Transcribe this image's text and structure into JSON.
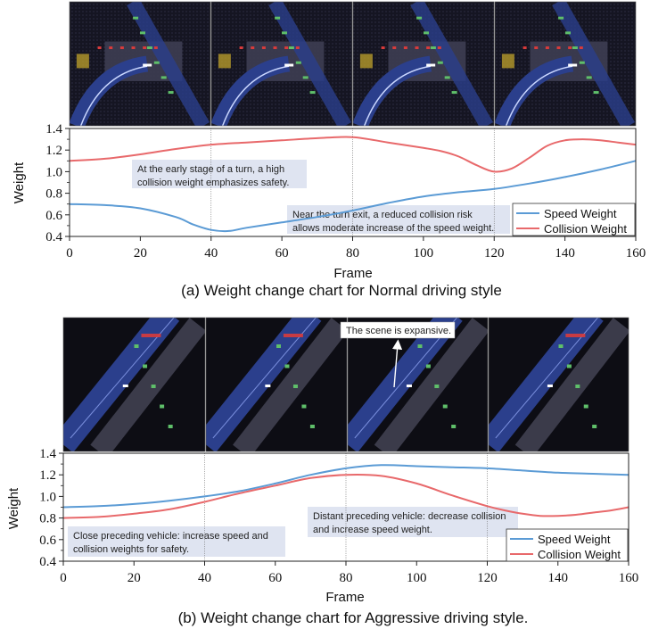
{
  "colors": {
    "speed": "#5b9bd5",
    "collision": "#e8696b",
    "annotation_bg": "#dde3f0",
    "scene_bg": "#0d0d14",
    "road": "#2b3f8c",
    "vehicle": "#5fbf6a",
    "highlight": "#d93b3b"
  },
  "chart_data": [
    {
      "type": "line",
      "title": "(a) Weight change chart for Normal driving style",
      "xlabel": "Frame",
      "ylabel": "Weight",
      "xlim": [
        0,
        160
      ],
      "ylim": [
        0.4,
        1.4
      ],
      "xticks": [
        "0",
        "20",
        "40",
        "60",
        "80",
        "100",
        "120",
        "140",
        "160"
      ],
      "yticks": [
        "0.4",
        "0.6",
        "0.8",
        "1.0",
        "1.2",
        "1.4"
      ],
      "frame_markers": [
        40,
        80,
        120
      ],
      "legend": [
        "Speed Weight",
        "Collision Weight"
      ],
      "legend_position": "bottom-right",
      "series": [
        {
          "name": "Speed Weight",
          "x": [
            0,
            10,
            20,
            30,
            35,
            40,
            45,
            50,
            60,
            70,
            80,
            90,
            100,
            110,
            120,
            130,
            140,
            150,
            160
          ],
          "y": [
            0.7,
            0.69,
            0.66,
            0.58,
            0.51,
            0.46,
            0.45,
            0.48,
            0.53,
            0.58,
            0.64,
            0.71,
            0.77,
            0.81,
            0.84,
            0.89,
            0.95,
            1.02,
            1.1
          ]
        },
        {
          "name": "Collision Weight",
          "x": [
            0,
            10,
            20,
            30,
            40,
            50,
            60,
            70,
            80,
            90,
            100,
            105,
            110,
            115,
            120,
            125,
            130,
            135,
            140,
            145,
            150,
            155,
            160
          ],
          "y": [
            1.1,
            1.12,
            1.16,
            1.21,
            1.25,
            1.27,
            1.29,
            1.31,
            1.32,
            1.27,
            1.22,
            1.19,
            1.14,
            1.06,
            1.0,
            1.03,
            1.13,
            1.24,
            1.29,
            1.3,
            1.29,
            1.27,
            1.25
          ]
        }
      ],
      "annotations": [
        {
          "lines": [
            "At the early stage of a turn, a high",
            "collision weight emphasizes safety."
          ]
        },
        {
          "lines": [
            "Near the turn exit, a reduced collision risk",
            "allows moderate increase of the speed weight."
          ]
        }
      ]
    },
    {
      "type": "line",
      "title": "(b) Weight change chart for Aggressive driving style.",
      "xlabel": "Frame",
      "ylabel": "Weight",
      "xlim": [
        0,
        160
      ],
      "ylim": [
        0.4,
        1.4
      ],
      "xticks": [
        "0",
        "20",
        "40",
        "60",
        "80",
        "100",
        "120",
        "140",
        "160"
      ],
      "yticks": [
        "0.4",
        "0.6",
        "0.8",
        "1.0",
        "1.2",
        "1.4"
      ],
      "frame_markers": [
        40,
        80,
        120
      ],
      "legend": [
        "Speed Weight",
        "Collision Weight"
      ],
      "legend_position": "bottom-right",
      "series": [
        {
          "name": "Speed Weight",
          "x": [
            0,
            10,
            20,
            30,
            40,
            50,
            60,
            70,
            80,
            90,
            100,
            110,
            120,
            130,
            140,
            150,
            160
          ],
          "y": [
            0.9,
            0.91,
            0.93,
            0.96,
            1.0,
            1.05,
            1.12,
            1.2,
            1.26,
            1.29,
            1.28,
            1.27,
            1.26,
            1.24,
            1.22,
            1.21,
            1.2
          ]
        },
        {
          "name": "Collision Weight",
          "x": [
            0,
            10,
            20,
            30,
            40,
            50,
            60,
            70,
            80,
            90,
            100,
            110,
            120,
            125,
            130,
            135,
            140,
            145,
            150,
            155,
            160
          ],
          "y": [
            0.8,
            0.81,
            0.84,
            0.88,
            0.95,
            1.03,
            1.1,
            1.17,
            1.2,
            1.19,
            1.12,
            1.01,
            0.91,
            0.87,
            0.84,
            0.82,
            0.82,
            0.83,
            0.85,
            0.87,
            0.9
          ]
        }
      ],
      "annotations": [
        {
          "lines": [
            "Close preceding vehicle: increase speed and",
            "collision weights for safety."
          ]
        },
        {
          "lines": [
            "Distant preceding vehicle: decrease collision",
            "and increase speed weight."
          ]
        }
      ]
    }
  ],
  "scene_callout": "The scene is expansive."
}
